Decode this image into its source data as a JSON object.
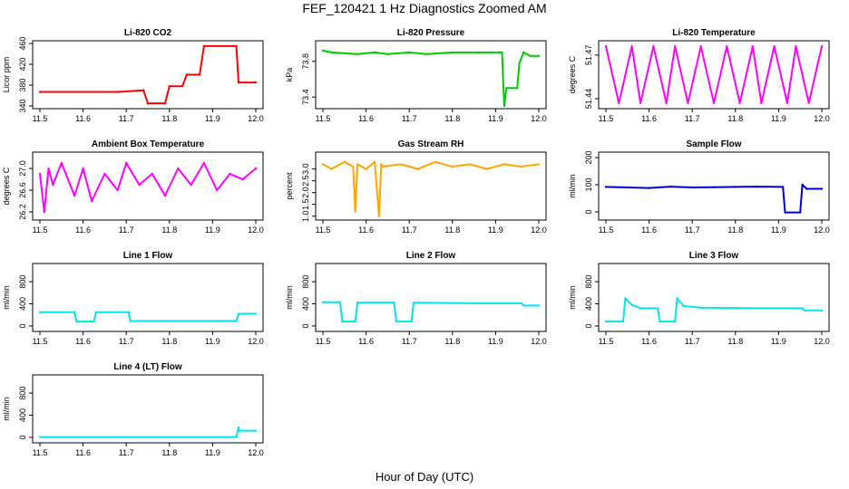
{
  "figure": {
    "title": "FEF_120421  1 Hz Diagnostics Zoomed AM",
    "xlabel": "Hour of Day (UTC)"
  },
  "chart_data": [
    {
      "id": "co2",
      "type": "line",
      "title": "Li-820 CO2",
      "ylabel": "Licor ppm",
      "color": "#ff0000",
      "xlim": [
        11.5,
        12.0
      ],
      "ylim": [
        340,
        460
      ],
      "xticks": [
        "11.5",
        "11.6",
        "11.7",
        "11.8",
        "11.9",
        "12.0"
      ],
      "yticks": [
        "340",
        "380",
        "420",
        "460"
      ],
      "x": [
        11.5,
        11.68,
        11.74,
        11.75,
        11.79,
        11.8,
        11.83,
        11.84,
        11.87,
        11.88,
        11.955,
        11.96,
        11.975,
        12.0
      ],
      "y": [
        367,
        367,
        370,
        345,
        345,
        378,
        378,
        400,
        400,
        455,
        455,
        385,
        385,
        385
      ]
    },
    {
      "id": "pressure",
      "type": "line",
      "title": "Li-820 Pressure",
      "ylabel": "kPa",
      "color": "#00cc00",
      "xlim": [
        11.5,
        12.0
      ],
      "ylim": [
        73.3,
        74.0
      ],
      "xticks": [
        "11.5",
        "11.6",
        "11.7",
        "11.8",
        "11.9",
        "12.0"
      ],
      "yticks": [
        "73.4",
        "73.8"
      ],
      "x": [
        11.5,
        11.52,
        11.58,
        11.62,
        11.65,
        11.7,
        11.74,
        11.8,
        11.86,
        11.91,
        11.915,
        11.92,
        11.925,
        11.95,
        11.955,
        11.965,
        11.98,
        12.0
      ],
      "y": [
        73.92,
        73.9,
        73.88,
        73.9,
        73.88,
        73.9,
        73.88,
        73.9,
        73.9,
        73.9,
        73.9,
        73.3,
        73.5,
        73.5,
        73.78,
        73.9,
        73.86,
        73.86
      ]
    },
    {
      "id": "temperature",
      "type": "line",
      "title": "Li-820 Temperature",
      "ylabel": "degrees C",
      "color": "#ff00ff",
      "xlim": [
        11.5,
        12.0
      ],
      "ylim": [
        51.435,
        51.478
      ],
      "xticks": [
        "11.5",
        "11.6",
        "11.7",
        "11.8",
        "11.9",
        "12.0"
      ],
      "yticks": [
        "51.44",
        "51.47"
      ],
      "x": [
        11.5,
        11.53,
        11.56,
        11.58,
        11.61,
        11.64,
        11.66,
        11.69,
        11.72,
        11.75,
        11.78,
        11.81,
        11.84,
        11.86,
        11.89,
        11.92,
        11.94,
        11.97,
        12.0
      ],
      "y": [
        51.476,
        51.437,
        51.476,
        51.437,
        51.476,
        51.437,
        51.476,
        51.437,
        51.476,
        51.437,
        51.476,
        51.437,
        51.476,
        51.437,
        51.476,
        51.437,
        51.476,
        51.437,
        51.476
      ]
    },
    {
      "id": "ambient",
      "type": "line",
      "title": "Ambient Box Temperature",
      "ylabel": "degrees C",
      "color": "#ff00ff",
      "xlim": [
        11.5,
        12.0
      ],
      "ylim": [
        26.1,
        27.25
      ],
      "xticks": [
        "11.5",
        "11.6",
        "11.7",
        "11.8",
        "11.9",
        "12.0"
      ],
      "yticks": [
        "26.2",
        "26.6",
        "27.0"
      ],
      "x": [
        11.5,
        11.51,
        11.52,
        11.53,
        11.55,
        11.58,
        11.6,
        11.62,
        11.65,
        11.68,
        11.7,
        11.73,
        11.76,
        11.79,
        11.82,
        11.85,
        11.88,
        11.91,
        11.94,
        11.97,
        12.0
      ],
      "y": [
        26.9,
        26.2,
        27.0,
        26.7,
        27.1,
        26.5,
        27.0,
        26.4,
        26.9,
        26.6,
        27.1,
        26.7,
        26.9,
        26.5,
        27.0,
        26.7,
        27.1,
        26.6,
        26.9,
        26.8,
        27.0
      ]
    },
    {
      "id": "rh",
      "type": "line",
      "title": "Gas Stream RH",
      "ylabel": "percent",
      "color": "#ffa500",
      "xlim": [
        11.5,
        12.0
      ],
      "ylim": [
        0.95,
        3.6
      ],
      "xticks": [
        "11.5",
        "11.6",
        "11.7",
        "11.8",
        "11.9",
        "12.0"
      ],
      "yticks": [
        "1.0",
        "1.5",
        "2.0",
        "2.5",
        "3.0"
      ],
      "x": [
        11.5,
        11.52,
        11.55,
        11.57,
        11.575,
        11.58,
        11.6,
        11.62,
        11.63,
        11.635,
        11.64,
        11.68,
        11.72,
        11.76,
        11.8,
        11.84,
        11.88,
        11.92,
        11.96,
        12.0
      ],
      "y": [
        3.2,
        3.0,
        3.3,
        3.1,
        1.2,
        3.2,
        3.0,
        3.3,
        1.0,
        3.2,
        3.1,
        3.2,
        3.0,
        3.3,
        3.1,
        3.2,
        3.0,
        3.2,
        3.1,
        3.2
      ]
    },
    {
      "id": "sample_flow",
      "type": "line",
      "title": "Sample Flow",
      "ylabel": "ml/min",
      "color": "#0000cc",
      "xlim": [
        11.5,
        12.0
      ],
      "ylim": [
        -20,
        210
      ],
      "xticks": [
        "11.5",
        "11.6",
        "11.7",
        "11.8",
        "11.9",
        "12.0"
      ],
      "yticks": [
        "0",
        "100",
        "200"
      ],
      "x": [
        11.5,
        11.55,
        11.6,
        11.65,
        11.7,
        11.75,
        11.8,
        11.85,
        11.91,
        11.915,
        11.95,
        11.955,
        11.965,
        12.0
      ],
      "y": [
        92,
        90,
        88,
        93,
        90,
        91,
        92,
        93,
        92,
        -2,
        -2,
        100,
        85,
        85
      ]
    },
    {
      "id": "line1",
      "type": "line",
      "title": "Line 1 Flow",
      "ylabel": "ml/min",
      "color": "#00e5ee",
      "xlim": [
        11.5,
        12.0
      ],
      "ylim": [
        -50,
        1080
      ],
      "xticks": [
        "11.5",
        "11.6",
        "11.7",
        "11.8",
        "11.9",
        "12.0"
      ],
      "yticks": [
        "0",
        "400",
        "800"
      ],
      "x": [
        11.5,
        11.58,
        11.585,
        11.625,
        11.63,
        11.705,
        11.71,
        11.955,
        11.96,
        12.0
      ],
      "y": [
        250,
        250,
        80,
        80,
        250,
        250,
        90,
        90,
        220,
        220
      ]
    },
    {
      "id": "line2",
      "type": "line",
      "title": "Line 2 Flow",
      "ylabel": "ml/min",
      "color": "#00e5ee",
      "xlim": [
        11.5,
        12.0
      ],
      "ylim": [
        -50,
        1080
      ],
      "xticks": [
        "11.5",
        "11.6",
        "11.7",
        "11.8",
        "11.9",
        "12.0"
      ],
      "yticks": [
        "0",
        "400",
        "800"
      ],
      "x": [
        11.5,
        11.54,
        11.545,
        11.575,
        11.58,
        11.665,
        11.67,
        11.705,
        11.71,
        11.85,
        11.96,
        11.965,
        12.0
      ],
      "y": [
        430,
        430,
        80,
        80,
        420,
        420,
        80,
        80,
        420,
        410,
        410,
        370,
        370
      ]
    },
    {
      "id": "line3",
      "type": "line",
      "title": "Line 3 Flow",
      "ylabel": "ml/min",
      "color": "#00e5ee",
      "xlim": [
        11.5,
        12.0
      ],
      "ylim": [
        -50,
        1080
      ],
      "xticks": [
        "11.5",
        "11.6",
        "11.7",
        "11.8",
        "11.9",
        "12.0"
      ],
      "yticks": [
        "0",
        "400",
        "800"
      ],
      "x": [
        11.5,
        11.54,
        11.545,
        11.56,
        11.58,
        11.62,
        11.625,
        11.66,
        11.665,
        11.68,
        11.72,
        11.85,
        11.955,
        11.96,
        12.0
      ],
      "y": [
        80,
        80,
        500,
        380,
        320,
        320,
        80,
        80,
        500,
        360,
        330,
        320,
        320,
        280,
        280
      ]
    },
    {
      "id": "line4",
      "type": "line",
      "title": "Line 4 (LT) Flow",
      "ylabel": "ml/min",
      "color": "#00e5ee",
      "xlim": [
        11.5,
        12.0
      ],
      "ylim": [
        -50,
        1080
      ],
      "xticks": [
        "11.5",
        "11.6",
        "11.7",
        "11.8",
        "11.9",
        "12.0"
      ],
      "yticks": [
        "0",
        "400",
        "800"
      ],
      "x": [
        11.5,
        11.7,
        11.955,
        11.96,
        11.962,
        12.0
      ],
      "y": [
        5,
        5,
        5,
        180,
        120,
        120
      ]
    }
  ]
}
